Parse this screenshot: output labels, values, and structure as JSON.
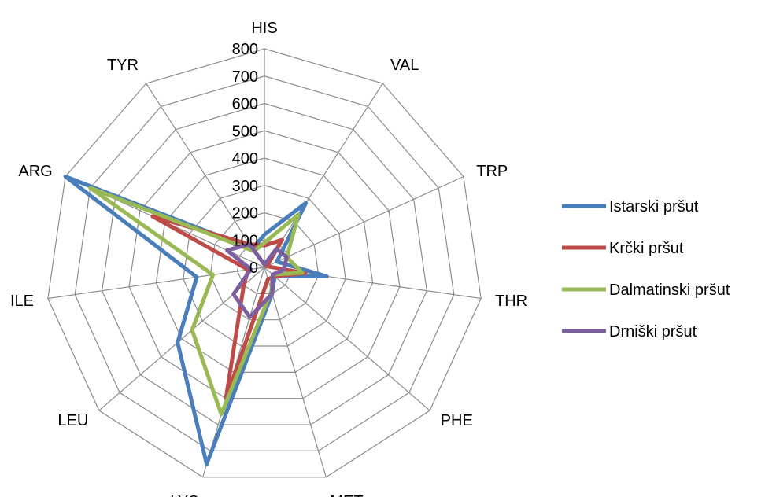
{
  "chart_data": {
    "type": "radar",
    "title": "",
    "categories": [
      "HIS",
      "VAL",
      "TRP",
      "THR",
      "PHE",
      "MET",
      "LYS",
      "LEU",
      "ILE",
      "ARG",
      "TYR"
    ],
    "rlim": [
      0,
      800
    ],
    "ticks": [
      "0",
      "100",
      "200",
      "300",
      "400",
      "500",
      "600",
      "700",
      "800"
    ],
    "tick_values": [
      0,
      100,
      200,
      300,
      400,
      500,
      600,
      700,
      800
    ],
    "grid": true,
    "legend_position": "right",
    "series": [
      {
        "name": "Istarski pršut",
        "color": "#4a7ebb",
        "values": [
          120,
          280,
          50,
          230,
          50,
          100,
          750,
          420,
          250,
          800,
          80
        ]
      },
      {
        "name": "Krčki pršut",
        "color": "#be4b48",
        "values": [
          80,
          120,
          10,
          150,
          50,
          45,
          500,
          100,
          60,
          450,
          100
        ]
      },
      {
        "name": "Dalmatinski pršut",
        "color": "#98b954",
        "values": [
          90,
          230,
          90,
          140,
          40,
          90,
          560,
          350,
          190,
          700,
          70
        ]
      },
      {
        "name": "Drniški pršut",
        "color": "#7d5fa0",
        "values": [
          10,
          80,
          90,
          70,
          40,
          100,
          190,
          150,
          50,
          150,
          100
        ]
      }
    ]
  }
}
